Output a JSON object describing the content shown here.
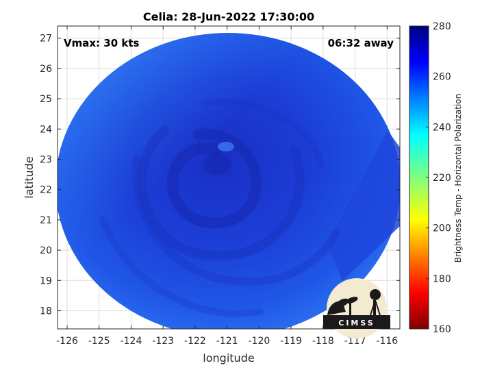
{
  "chart_data": {
    "type": "heatmap",
    "title": "Celia: 28-Jun-2022 17:30:00",
    "xlabel": "longitude",
    "ylabel": "latitude",
    "xlim": [
      -126.3,
      -115.6
    ],
    "ylim": [
      17.4,
      27.4
    ],
    "xticks": [
      -126,
      -125,
      -124,
      -123,
      -122,
      -121,
      -120,
      -119,
      -118,
      -117,
      -116
    ],
    "yticks": [
      18,
      19,
      20,
      21,
      22,
      23,
      24,
      25,
      26,
      27
    ],
    "grid": true,
    "annotations": {
      "top_left": "Vmax: 30 kts",
      "top_right": "06:32 away"
    },
    "colorbar": {
      "label": "Brightness Temp - Horizontal Polarization",
      "range": [
        160,
        280
      ],
      "ticks": [
        160,
        180,
        200,
        220,
        240,
        260,
        280
      ],
      "colormap": "jet"
    },
    "field": {
      "swath_center": [
        -121.0,
        22.3
      ],
      "swath_radius_deg": 5.0,
      "vortex_center": [
        -120.9,
        22.7
      ],
      "typical_value": 262,
      "min_value": 250,
      "max_value": 268
    },
    "logo": "CIMSS"
  }
}
